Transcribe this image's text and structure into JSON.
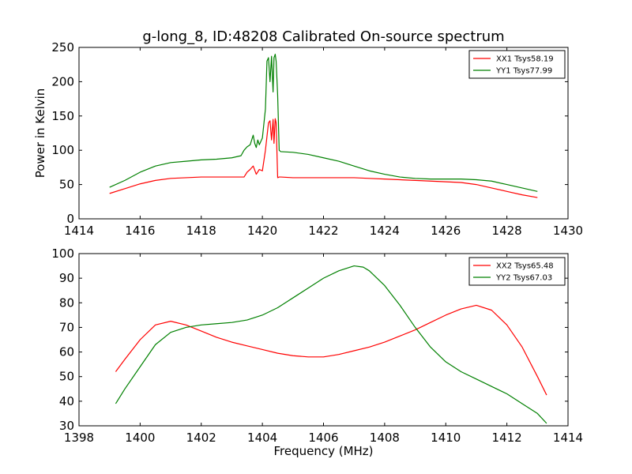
{
  "chart_data": [
    {
      "type": "line",
      "title": "g-long_8, ID:48208 Calibrated On-source spectrum",
      "xlabel": "",
      "ylabel": "Power in Kelvin",
      "xlim": [
        1414,
        1430
      ],
      "ylim": [
        0,
        250
      ],
      "xticks": [
        1414,
        1416,
        1418,
        1420,
        1422,
        1424,
        1426,
        1428,
        1430
      ],
      "yticks": [
        0,
        50,
        100,
        150,
        200,
        250
      ],
      "legend_position": "top-right",
      "grid": false,
      "series": [
        {
          "name": "XX1 Tsys58.19",
          "color": "#ff0000",
          "x": [
            1415.0,
            1415.5,
            1416.0,
            1416.5,
            1417.0,
            1417.5,
            1418.0,
            1418.5,
            1419.0,
            1419.4,
            1419.5,
            1419.6,
            1419.7,
            1419.8,
            1419.9,
            1420.0,
            1420.1,
            1420.2,
            1420.25,
            1420.3,
            1420.35,
            1420.38,
            1420.42,
            1420.45,
            1420.5,
            1420.55,
            1420.6,
            1421.0,
            1421.5,
            1422.0,
            1422.5,
            1423.0,
            1423.5,
            1424.0,
            1424.5,
            1425.0,
            1425.5,
            1426.0,
            1426.5,
            1427.0,
            1427.5,
            1428.0,
            1428.5,
            1429.0
          ],
          "y": [
            37,
            44,
            51,
            56,
            59,
            60,
            61,
            61,
            61,
            61,
            68,
            72,
            77,
            65,
            72,
            70,
            100,
            140,
            143,
            115,
            145,
            110,
            146,
            140,
            60,
            61,
            61,
            60,
            60,
            60,
            60,
            60,
            59,
            58,
            57,
            56,
            55,
            54,
            53,
            50,
            45,
            40,
            35,
            31
          ]
        },
        {
          "name": "YY1 Tsys77.99",
          "color": "#008000",
          "x": [
            1415.0,
            1415.5,
            1416.0,
            1416.5,
            1417.0,
            1417.5,
            1418.0,
            1418.5,
            1419.0,
            1419.3,
            1419.4,
            1419.5,
            1419.6,
            1419.7,
            1419.75,
            1419.8,
            1419.85,
            1419.9,
            1420.0,
            1420.1,
            1420.15,
            1420.2,
            1420.25,
            1420.3,
            1420.35,
            1420.38,
            1420.42,
            1420.45,
            1420.5,
            1420.55,
            1420.6,
            1421.0,
            1421.5,
            1422.0,
            1422.5,
            1423.0,
            1423.5,
            1424.0,
            1424.5,
            1425.0,
            1425.5,
            1426.0,
            1426.5,
            1427.0,
            1427.5,
            1428.0,
            1428.5,
            1429.0
          ],
          "y": [
            46,
            56,
            68,
            77,
            82,
            84,
            86,
            87,
            89,
            92,
            100,
            105,
            108,
            122,
            110,
            104,
            115,
            108,
            118,
            160,
            230,
            235,
            200,
            237,
            185,
            235,
            240,
            230,
            180,
            100,
            98,
            97,
            94,
            89,
            84,
            77,
            70,
            65,
            61,
            59,
            58,
            58,
            58,
            57,
            55,
            50,
            45,
            40
          ]
        }
      ]
    },
    {
      "type": "line",
      "title": "",
      "xlabel": "Frequency (MHz)",
      "ylabel": "",
      "xlim": [
        1398,
        1414
      ],
      "ylim": [
        30,
        100
      ],
      "xticks": [
        1398,
        1400,
        1402,
        1404,
        1406,
        1408,
        1410,
        1412,
        1414
      ],
      "yticks": [
        30,
        40,
        50,
        60,
        70,
        80,
        90,
        100
      ],
      "legend_position": "top-right",
      "grid": false,
      "series": [
        {
          "name": "XX2 Tsys65.48",
          "color": "#ff0000",
          "x": [
            1399.2,
            1399.5,
            1400.0,
            1400.5,
            1401.0,
            1401.5,
            1402.0,
            1402.5,
            1403.0,
            1403.5,
            1404.0,
            1404.5,
            1405.0,
            1405.5,
            1406.0,
            1406.5,
            1407.0,
            1407.5,
            1408.0,
            1408.5,
            1409.0,
            1409.5,
            1410.0,
            1410.5,
            1411.0,
            1411.5,
            1412.0,
            1412.5,
            1413.0,
            1413.3
          ],
          "y": [
            52,
            57,
            65,
            71,
            72.5,
            71,
            68.5,
            66,
            64,
            62.5,
            61,
            59.5,
            58.5,
            58,
            58,
            59,
            60.5,
            62,
            64,
            66.5,
            69,
            72,
            75,
            77.5,
            79,
            77,
            71,
            62,
            50,
            42.5
          ]
        },
        {
          "name": "YY2 Tsys67.03",
          "color": "#008000",
          "x": [
            1399.2,
            1399.5,
            1400.0,
            1400.5,
            1401.0,
            1401.5,
            1402.0,
            1402.5,
            1403.0,
            1403.5,
            1404.0,
            1404.5,
            1405.0,
            1405.5,
            1406.0,
            1406.5,
            1407.0,
            1407.3,
            1407.5,
            1408.0,
            1408.5,
            1409.0,
            1409.5,
            1410.0,
            1410.5,
            1411.0,
            1411.5,
            1412.0,
            1412.5,
            1413.0,
            1413.3
          ],
          "y": [
            39,
            45,
            54,
            63,
            68,
            70,
            71,
            71.5,
            72,
            73,
            75,
            78,
            82,
            86,
            90,
            93,
            95,
            94.5,
            93,
            87,
            79,
            70,
            62,
            56,
            52,
            49,
            46,
            43,
            39,
            35,
            31
          ]
        }
      ]
    }
  ]
}
